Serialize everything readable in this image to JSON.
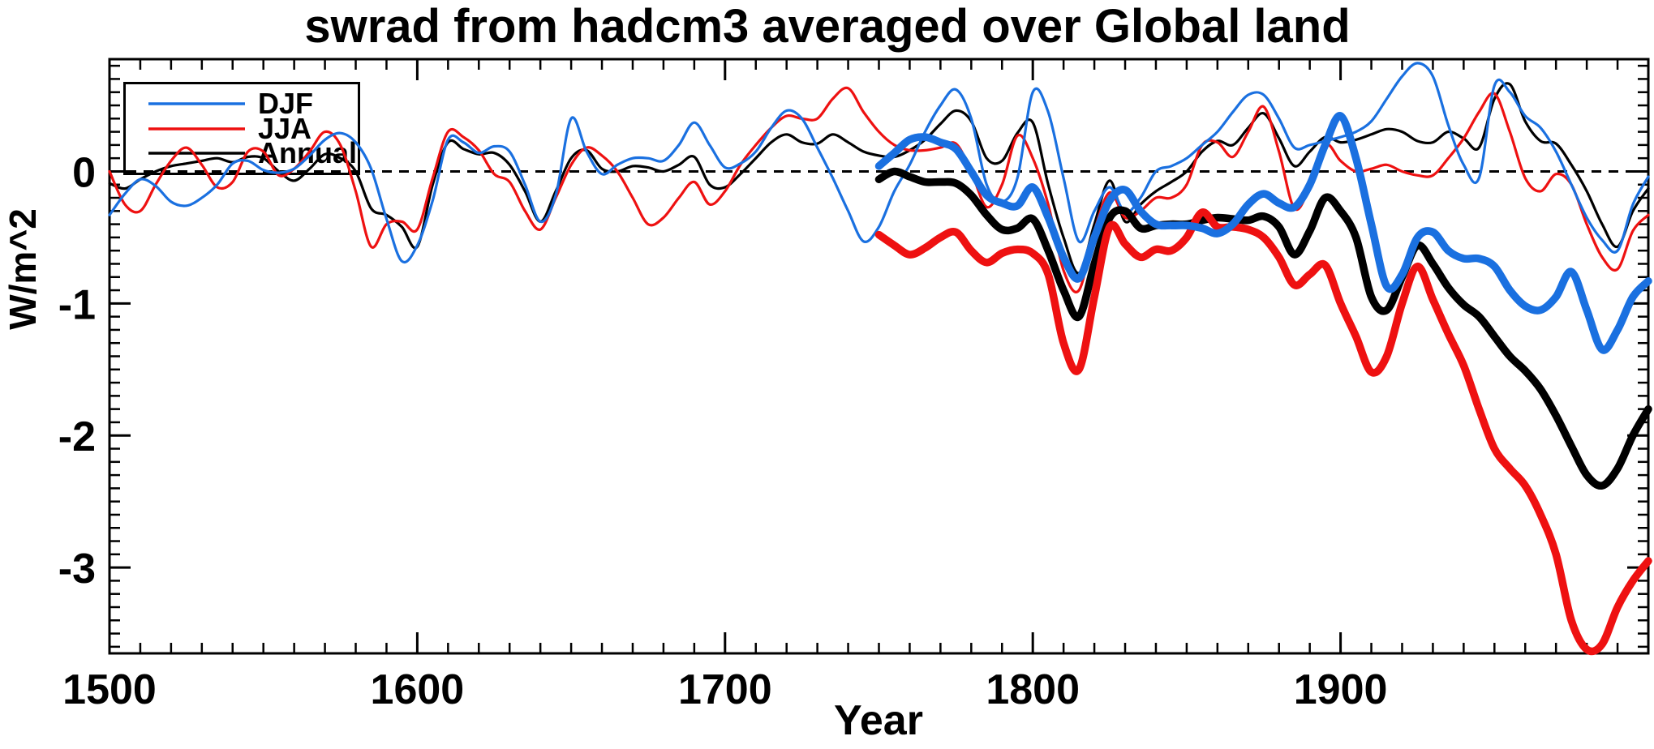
{
  "chart_data": {
    "type": "line",
    "title": "swrad from hadcm3 averaged over Global land",
    "xlabel": "Year",
    "ylabel": "W/m^2",
    "xlim": [
      1500,
      2000
    ],
    "ylim": [
      -3.65,
      0.85
    ],
    "x_major_tick_step": 100,
    "x_minor_tick_step": 10,
    "x_tick_labels": [
      "1500",
      "1600",
      "1700",
      "1800",
      "1900"
    ],
    "y_major_ticks": [
      0,
      -1,
      -2,
      -3
    ],
    "y_tick_labels": [
      "0",
      "-1",
      "-2",
      "-3"
    ],
    "y_minor_tick_step": 0.1,
    "zero_line_dashed": true,
    "grid": "off",
    "legend_position": "top-left",
    "legend": [
      {
        "label": "DJF",
        "color": "#1a70e0"
      },
      {
        "label": "JJA",
        "color": "#ee1111"
      },
      {
        "label": "Annual",
        "color": "#000000"
      }
    ],
    "series": [
      {
        "id": "annual-thin",
        "label": "Annual",
        "color": "#000000",
        "line_width": 3.2,
        "x_start": 1500,
        "x_step": 5,
        "values": [
          -0.09,
          -0.13,
          -0.06,
          0.0,
          0.04,
          0.06,
          0.08,
          0.1,
          0.07,
          0.11,
          0.1,
          0.0,
          -0.07,
          0.02,
          0.13,
          0.1,
          0.0,
          -0.28,
          -0.33,
          -0.42,
          -0.57,
          -0.1,
          0.22,
          0.17,
          0.13,
          0.14,
          0.05,
          -0.15,
          -0.38,
          -0.15,
          0.1,
          0.16,
          0.02,
          0.0,
          0.04,
          0.03,
          0.0,
          0.05,
          0.11,
          -0.1,
          -0.12,
          -0.02,
          0.1,
          0.22,
          0.28,
          0.22,
          0.21,
          0.28,
          0.22,
          0.15,
          0.12,
          0.11,
          0.16,
          0.24,
          0.36,
          0.46,
          0.38,
          0.1,
          0.08,
          0.29,
          0.37,
          -0.1,
          -0.5,
          -0.77,
          -0.4,
          -0.07,
          -0.38,
          -0.25,
          -0.15,
          -0.08,
          0.0,
          0.15,
          0.23,
          0.2,
          0.33,
          0.44,
          0.25,
          0.04,
          0.15,
          0.26,
          0.22,
          0.24,
          0.28,
          0.32,
          0.3,
          0.23,
          0.22,
          0.3,
          0.25,
          0.18,
          0.55,
          0.66,
          0.38,
          0.23,
          0.21,
          0.05,
          -0.15,
          -0.4,
          -0.57,
          -0.3,
          -0.13
        ]
      },
      {
        "id": "jja-thin",
        "label": "JJA",
        "color": "#ee1111",
        "line_width": 3.2,
        "x_start": 1500,
        "x_step": 5,
        "values": [
          0.0,
          -0.25,
          -0.3,
          -0.1,
          0.08,
          0.18,
          0.05,
          -0.12,
          -0.08,
          0.15,
          0.15,
          -0.03,
          0.02,
          0.15,
          0.3,
          0.2,
          -0.15,
          -0.57,
          -0.4,
          -0.38,
          -0.44,
          -0.05,
          0.3,
          0.26,
          0.16,
          -0.02,
          -0.08,
          -0.3,
          -0.44,
          -0.2,
          0.05,
          0.18,
          0.12,
          0.0,
          -0.2,
          -0.4,
          -0.35,
          -0.2,
          -0.08,
          -0.25,
          -0.15,
          0.05,
          0.2,
          0.33,
          0.42,
          0.4,
          0.4,
          0.55,
          0.63,
          0.45,
          0.3,
          0.2,
          0.16,
          0.16,
          0.18,
          0.21,
          0.0,
          -0.27,
          -0.1,
          0.27,
          0.1,
          -0.25,
          -0.75,
          -0.9,
          -0.45,
          -0.16,
          -0.35,
          -0.3,
          -0.2,
          -0.2,
          -0.1,
          0.2,
          0.22,
          0.11,
          0.3,
          0.49,
          0.15,
          -0.28,
          -0.12,
          0.2,
          0.08,
          0.0,
          0.02,
          0.05,
          0.0,
          -0.03,
          -0.03,
          0.1,
          0.25,
          0.45,
          0.59,
          0.3,
          -0.05,
          -0.15,
          -0.02,
          -0.1,
          -0.4,
          -0.65,
          -0.74,
          -0.45,
          -0.33
        ]
      },
      {
        "id": "djf-thin",
        "label": "DJF",
        "color": "#1a70e0",
        "line_width": 3.2,
        "x_start": 1500,
        "x_step": 5,
        "values": [
          -0.33,
          -0.17,
          -0.06,
          -0.11,
          -0.23,
          -0.26,
          -0.2,
          -0.1,
          0.06,
          0.08,
          0.01,
          -0.01,
          0.02,
          0.12,
          0.24,
          0.29,
          0.22,
          0.02,
          -0.36,
          -0.68,
          -0.56,
          -0.22,
          0.24,
          0.22,
          0.14,
          0.19,
          0.15,
          -0.1,
          -0.38,
          -0.18,
          0.4,
          0.15,
          -0.02,
          0.05,
          0.1,
          0.1,
          0.08,
          0.2,
          0.37,
          0.2,
          0.03,
          0.06,
          0.15,
          0.33,
          0.46,
          0.4,
          0.18,
          -0.05,
          -0.3,
          -0.53,
          -0.42,
          -0.15,
          0.05,
          0.3,
          0.5,
          0.62,
          0.4,
          -0.1,
          -0.23,
          -0.05,
          0.6,
          0.45,
          -0.05,
          -0.53,
          -0.3,
          -0.12,
          -0.31,
          -0.2,
          0.0,
          0.04,
          0.1,
          0.2,
          0.3,
          0.45,
          0.58,
          0.58,
          0.4,
          0.18,
          0.2,
          0.23,
          0.26,
          0.3,
          0.38,
          0.55,
          0.72,
          0.82,
          0.72,
          0.35,
          0.05,
          -0.05,
          0.65,
          0.6,
          0.42,
          0.33,
          0.15,
          -0.1,
          -0.35,
          -0.52,
          -0.6,
          -0.25,
          -0.04
        ]
      },
      {
        "id": "annual-thick",
        "label": "Annual",
        "color": "#000000",
        "line_width": 9.5,
        "x_start": 1750,
        "x_step": 5,
        "values": [
          -0.06,
          0.0,
          -0.04,
          -0.08,
          -0.08,
          -0.09,
          -0.18,
          -0.33,
          -0.44,
          -0.43,
          -0.36,
          -0.6,
          -0.9,
          -1.1,
          -0.7,
          -0.35,
          -0.3,
          -0.43,
          -0.41,
          -0.4,
          -0.4,
          -0.37,
          -0.35,
          -0.36,
          -0.37,
          -0.34,
          -0.42,
          -0.63,
          -0.45,
          -0.2,
          -0.3,
          -0.5,
          -0.95,
          -1.05,
          -0.8,
          -0.56,
          -0.7,
          -0.88,
          -1.01,
          -1.1,
          -1.25,
          -1.4,
          -1.51,
          -1.65,
          -1.85,
          -2.08,
          -2.3,
          -2.38,
          -2.25,
          -2.0,
          -1.8
        ]
      },
      {
        "id": "jja-thick",
        "label": "JJA",
        "color": "#ee1111",
        "line_width": 9.5,
        "x_start": 1750,
        "x_step": 5,
        "values": [
          -0.48,
          -0.56,
          -0.63,
          -0.58,
          -0.5,
          -0.46,
          -0.6,
          -0.69,
          -0.62,
          -0.59,
          -0.62,
          -0.78,
          -1.3,
          -1.5,
          -0.95,
          -0.42,
          -0.55,
          -0.65,
          -0.59,
          -0.6,
          -0.5,
          -0.31,
          -0.42,
          -0.42,
          -0.44,
          -0.5,
          -0.65,
          -0.86,
          -0.78,
          -0.71,
          -1.0,
          -1.25,
          -1.52,
          -1.4,
          -1.0,
          -0.72,
          -0.97,
          -1.23,
          -1.47,
          -1.8,
          -2.1,
          -2.25,
          -2.38,
          -2.6,
          -2.9,
          -3.4,
          -3.62,
          -3.58,
          -3.3,
          -3.1,
          -2.95
        ]
      },
      {
        "id": "djf-thick",
        "label": "DJF",
        "color": "#1a70e0",
        "line_width": 9.5,
        "x_start": 1750,
        "x_step": 5,
        "values": [
          0.04,
          0.14,
          0.24,
          0.26,
          0.22,
          0.17,
          0.0,
          -0.18,
          -0.24,
          -0.26,
          -0.12,
          -0.35,
          -0.65,
          -0.81,
          -0.5,
          -0.22,
          -0.14,
          -0.3,
          -0.4,
          -0.41,
          -0.41,
          -0.43,
          -0.47,
          -0.4,
          -0.25,
          -0.17,
          -0.24,
          -0.27,
          -0.1,
          0.2,
          0.42,
          0.1,
          -0.4,
          -0.87,
          -0.78,
          -0.5,
          -0.46,
          -0.6,
          -0.66,
          -0.66,
          -0.72,
          -0.9,
          -1.02,
          -1.05,
          -0.95,
          -0.76,
          -1.05,
          -1.35,
          -1.2,
          -0.95,
          -0.83
        ]
      }
    ]
  }
}
